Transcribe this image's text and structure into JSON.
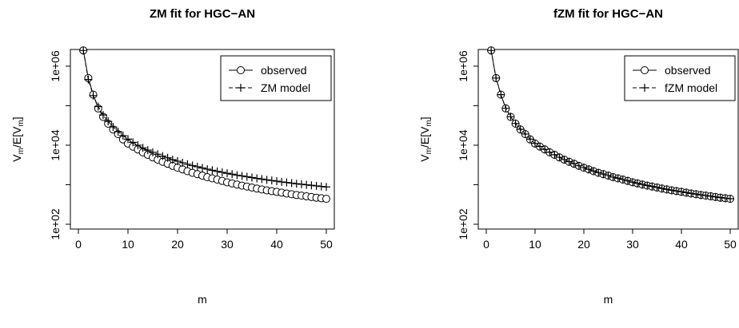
{
  "chart_data": [
    {
      "type": "line",
      "title": "ZM fit for HGC−AN",
      "xlabel": "m",
      "ylabel_main": "V",
      "ylabel_sub1": "m",
      "ylabel_mid": "/E[V",
      "ylabel_sub2": "m",
      "ylabel_end": "]",
      "y_scale": "log",
      "xlim": [
        0,
        50
      ],
      "ylim": [
        100,
        2000000
      ],
      "x_ticks": [
        "0",
        "10",
        "20",
        "30",
        "40",
        "50"
      ],
      "y_ticks": [
        "1e+02",
        "1e+04",
        "1e+06"
      ],
      "legend_position": "top-right",
      "legend": [
        "observed",
        "ZM model"
      ],
      "x": [
        1,
        2,
        3,
        4,
        5,
        6,
        7,
        8,
        9,
        10,
        11,
        12,
        13,
        14,
        15,
        16,
        17,
        18,
        19,
        20,
        21,
        22,
        23,
        24,
        25,
        26,
        27,
        28,
        29,
        30,
        31,
        32,
        33,
        34,
        35,
        36,
        37,
        38,
        39,
        40,
        41,
        42,
        43,
        44,
        45,
        46,
        47,
        48,
        49,
        50
      ],
      "series": [
        {
          "name": "observed",
          "marker": "circle",
          "values": [
            2500000,
            500000,
            190000,
            85000,
            52000,
            35000,
            25000,
            19000,
            14000,
            11000,
            9200,
            7800,
            6600,
            5700,
            4900,
            4300,
            3800,
            3400,
            3000,
            2700,
            2450,
            2200,
            2000,
            1850,
            1700,
            1550,
            1450,
            1350,
            1250,
            1150,
            1080,
            1010,
            950,
            900,
            850,
            800,
            760,
            720,
            690,
            660,
            630,
            600,
            575,
            550,
            530,
            510,
            490,
            470,
            455,
            440
          ]
        },
        {
          "name": "ZM model",
          "marker": "plus",
          "values": [
            2500000,
            460000,
            180000,
            95000,
            58000,
            40000,
            29000,
            22000,
            17500,
            14200,
            11800,
            10000,
            8600,
            7500,
            6600,
            5900,
            5300,
            4800,
            4300,
            3950,
            3600,
            3300,
            3050,
            2850,
            2650,
            2480,
            2320,
            2180,
            2060,
            1950,
            1850,
            1750,
            1670,
            1590,
            1520,
            1450,
            1390,
            1330,
            1280,
            1230,
            1180,
            1140,
            1100,
            1060,
            1030,
            995,
            965,
            935,
            905,
            880
          ]
        }
      ]
    },
    {
      "type": "line",
      "title": "fZM fit for HGC−AN",
      "xlabel": "m",
      "ylabel_main": "V",
      "ylabel_sub1": "m",
      "ylabel_mid": "/E[V",
      "ylabel_sub2": "m",
      "ylabel_end": "]",
      "y_scale": "log",
      "xlim": [
        0,
        50
      ],
      "ylim": [
        100,
        2000000
      ],
      "x_ticks": [
        "0",
        "10",
        "20",
        "30",
        "40",
        "50"
      ],
      "y_ticks": [
        "1e+02",
        "1e+04",
        "1e+06"
      ],
      "legend_position": "top-right",
      "legend": [
        "observed",
        "fZM model"
      ],
      "x": [
        1,
        2,
        3,
        4,
        5,
        6,
        7,
        8,
        9,
        10,
        11,
        12,
        13,
        14,
        15,
        16,
        17,
        18,
        19,
        20,
        21,
        22,
        23,
        24,
        25,
        26,
        27,
        28,
        29,
        30,
        31,
        32,
        33,
        34,
        35,
        36,
        37,
        38,
        39,
        40,
        41,
        42,
        43,
        44,
        45,
        46,
        47,
        48,
        49,
        50
      ],
      "series": [
        {
          "name": "observed",
          "marker": "circle",
          "values": [
            2500000,
            500000,
            190000,
            85000,
            52000,
            35000,
            25000,
            19000,
            14000,
            11000,
            9200,
            7800,
            6600,
            5700,
            4900,
            4300,
            3800,
            3400,
            3000,
            2700,
            2450,
            2200,
            2000,
            1850,
            1700,
            1550,
            1450,
            1350,
            1250,
            1150,
            1080,
            1010,
            950,
            900,
            850,
            800,
            760,
            720,
            690,
            660,
            630,
            600,
            575,
            550,
            530,
            510,
            490,
            470,
            455,
            440
          ]
        },
        {
          "name": "fZM model",
          "marker": "plus",
          "values": [
            2500000,
            500000,
            190000,
            86000,
            52500,
            35500,
            25300,
            19200,
            14200,
            11100,
            9300,
            7850,
            6650,
            5750,
            4950,
            4330,
            3830,
            3420,
            3020,
            2720,
            2460,
            2215,
            2010,
            1860,
            1710,
            1560,
            1460,
            1355,
            1255,
            1160,
            1085,
            1015,
            955,
            905,
            855,
            805,
            765,
            725,
            693,
            662,
            632,
            603,
            578,
            553,
            532,
            512,
            492,
            472,
            457,
            442
          ]
        }
      ]
    }
  ]
}
